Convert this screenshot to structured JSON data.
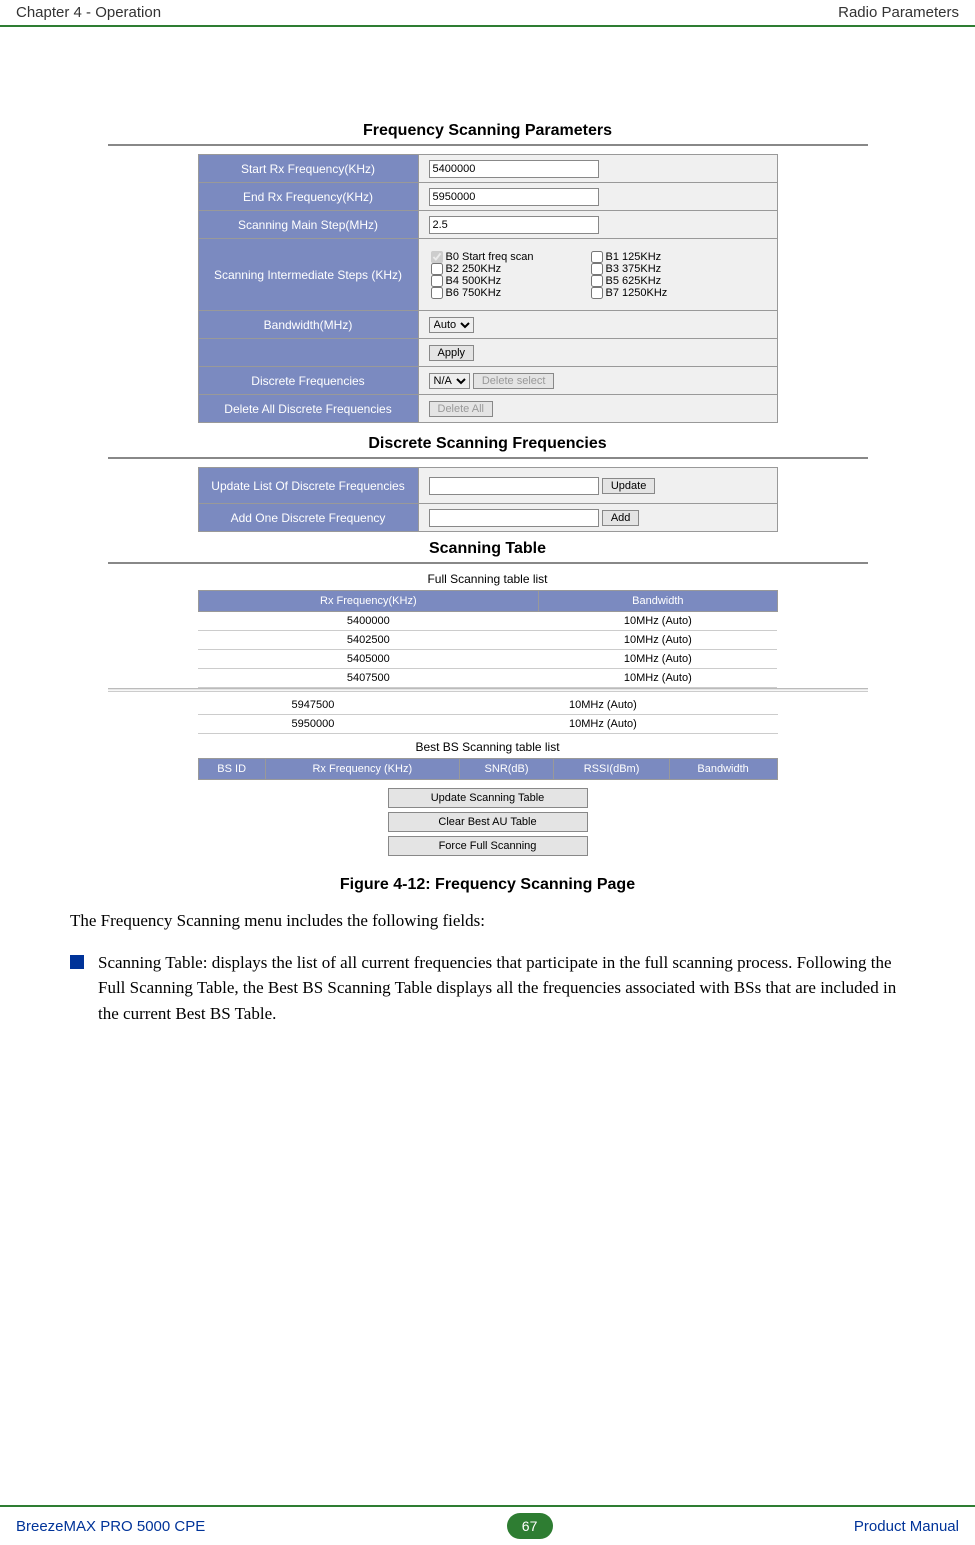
{
  "header": {
    "left": "Chapter 4 - Operation",
    "right": "Radio Parameters"
  },
  "footer": {
    "left": "BreezeMAX PRO 5000 CPE",
    "page": "67",
    "right": "Product Manual"
  },
  "figure_caption": "Figure 4-12: Frequency Scanning Page",
  "body": {
    "intro": "The Frequency Scanning menu includes the following fields:",
    "bullet": "Scanning Table: displays the list of all current frequencies that participate in the full scanning process. Following the Full Scanning Table, the Best BS Scanning Table displays all the frequencies associated with BSs that are included in the current Best BS Table."
  },
  "sec1": {
    "title": "Frequency Scanning Parameters",
    "rows": {
      "start_label": "Start Rx Frequency(KHz)",
      "start_val": "5400000",
      "end_label": "End Rx Frequency(KHz)",
      "end_val": "5950000",
      "mainstep_label": "Scanning Main Step(MHz)",
      "mainstep_val": "2.5",
      "intsteps_label": "Scanning Intermediate Steps (KHz)",
      "bandwidth_label": "Bandwidth(MHz)",
      "bandwidth_val": "Auto",
      "apply_btn": "Apply",
      "discrete_label": "Discrete Frequencies",
      "discrete_sel": "N/A",
      "delete_sel_btn": "Delete select",
      "delall_label": "Delete All Discrete Frequencies",
      "delall_btn": "Delete All"
    },
    "checkboxes": [
      {
        "checked": true,
        "label": "B0 Start freq scan"
      },
      {
        "checked": false,
        "label": "B1 125KHz"
      },
      {
        "checked": false,
        "label": "B2 250KHz"
      },
      {
        "checked": false,
        "label": "B3 375KHz"
      },
      {
        "checked": false,
        "label": "B4 500KHz"
      },
      {
        "checked": false,
        "label": "B5 625KHz"
      },
      {
        "checked": false,
        "label": "B6 750KHz"
      },
      {
        "checked": false,
        "label": "B7 1250KHz"
      }
    ]
  },
  "sec2": {
    "title": "Discrete Scanning Frequencies",
    "update_label": "Update List Of Discrete Frequencies",
    "update_btn": "Update",
    "add_label": "Add One Discrete Frequency",
    "add_btn": "Add"
  },
  "sec3": {
    "title": "Scanning Table",
    "full_caption": "Full Scanning table list",
    "full_cols": [
      "Rx Frequency(KHz)",
      "Bandwidth"
    ],
    "full_rows_a": [
      [
        "5400000",
        "10MHz (Auto)"
      ],
      [
        "5402500",
        "10MHz (Auto)"
      ],
      [
        "5405000",
        "10MHz (Auto)"
      ],
      [
        "5407500",
        "10MHz (Auto)"
      ]
    ],
    "full_rows_b": [
      [
        "5947500",
        "10MHz (Auto)"
      ],
      [
        "5950000",
        "10MHz (Auto)"
      ]
    ],
    "bs_caption": "Best BS Scanning table list",
    "bs_cols": [
      "BS ID",
      "Rx Frequency (KHz)",
      "SNR(dB)",
      "RSSI(dBm)",
      "Bandwidth"
    ],
    "btn_update": "Update Scanning Table",
    "btn_clear": "Clear Best AU Table",
    "btn_force": "Force Full Scanning"
  }
}
